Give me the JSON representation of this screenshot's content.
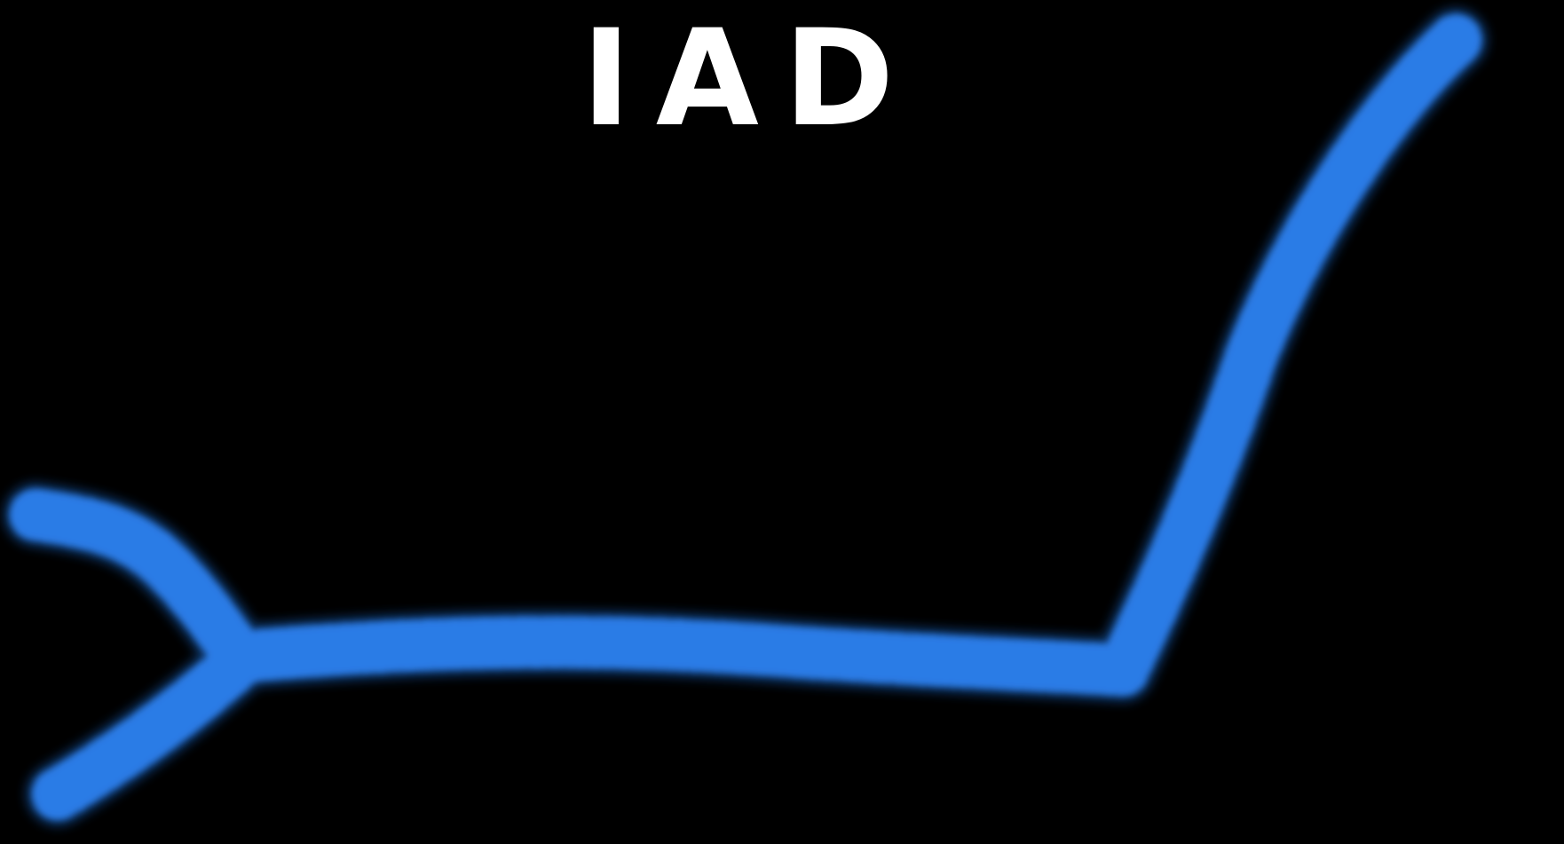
{
  "drawing": {
    "label": "IAD",
    "colors": {
      "background": "#000000",
      "label": "#ffffff",
      "stroke": "#1f6fd8",
      "stroke_core": "#2b7be6"
    },
    "strokes": [
      {
        "name": "upper-left-branch"
      },
      {
        "name": "lower-left-branch"
      },
      {
        "name": "horizontal-segment"
      },
      {
        "name": "rising-segment"
      }
    ]
  }
}
